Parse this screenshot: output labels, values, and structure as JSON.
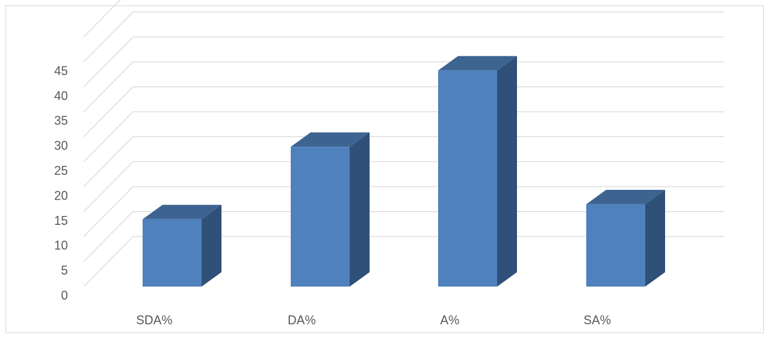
{
  "chart_data": {
    "type": "bar",
    "categories": [
      "SDA%",
      "DA%",
      "A%",
      "SA%"
    ],
    "values": [
      13.5,
      28,
      43.3,
      16.5
    ],
    "ylim": [
      0,
      45
    ],
    "yticks": [
      0,
      5,
      10,
      15,
      20,
      25,
      30,
      35,
      40,
      45
    ],
    "grid": true,
    "style": "3d-column"
  },
  "colors": {
    "bar_front": "#4f81bd",
    "bar_top": "#3d6490",
    "bar_side": "#2f5078",
    "gridline": "#d9d9d9",
    "label_text": "#595959"
  }
}
